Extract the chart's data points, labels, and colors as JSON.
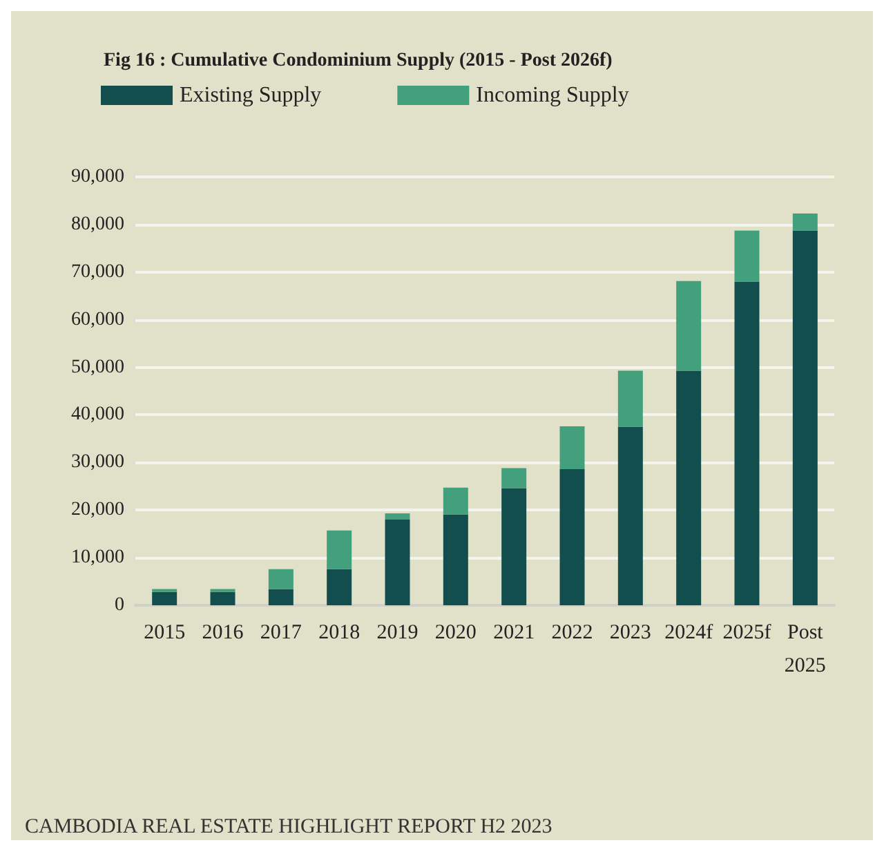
{
  "chart_data": {
    "type": "bar",
    "stacked": true,
    "title": "Fig 16 : Cumulative Condominium Supply (2015 - Post 2026f)",
    "categories": [
      "2015",
      "2016",
      "2017",
      "2018",
      "2019",
      "2020",
      "2021",
      "2022",
      "2023",
      "2024f",
      "2025f",
      "Post\n2025"
    ],
    "series": [
      {
        "name": "Existing Supply",
        "color": "#124e4e",
        "values": [
          2800,
          2800,
          3400,
          7600,
          18000,
          19100,
          24600,
          28600,
          37500,
          49300,
          68000,
          78700
        ]
      },
      {
        "name": "Incoming Supply",
        "color": "#43a07c",
        "values": [
          600,
          600,
          4200,
          8100,
          1300,
          5600,
          4200,
          9000,
          11800,
          18800,
          10700,
          3600
        ]
      }
    ],
    "ylim": [
      0,
      90000
    ],
    "yticks": [
      0,
      {
        "value": 10000,
        "label": "10,000"
      },
      {
        "value": 20000,
        "label": "20,000"
      },
      {
        "value": 30000,
        "label": "30,000"
      },
      {
        "value": 40000,
        "label": "40,000"
      },
      {
        "value": 50000,
        "label": "50,000"
      },
      {
        "value": 60000,
        "label": "60,000"
      },
      {
        "value": 70000,
        "label": "70,000"
      },
      {
        "value": 80000,
        "label": "80,000"
      },
      {
        "value": 90000,
        "label": "90,000"
      }
    ],
    "grid": "y",
    "legend": "top left",
    "annotations": [
      "CAMBODIA REAL ESTATE HIGHLIGHT REPORT H2 2023"
    ]
  }
}
